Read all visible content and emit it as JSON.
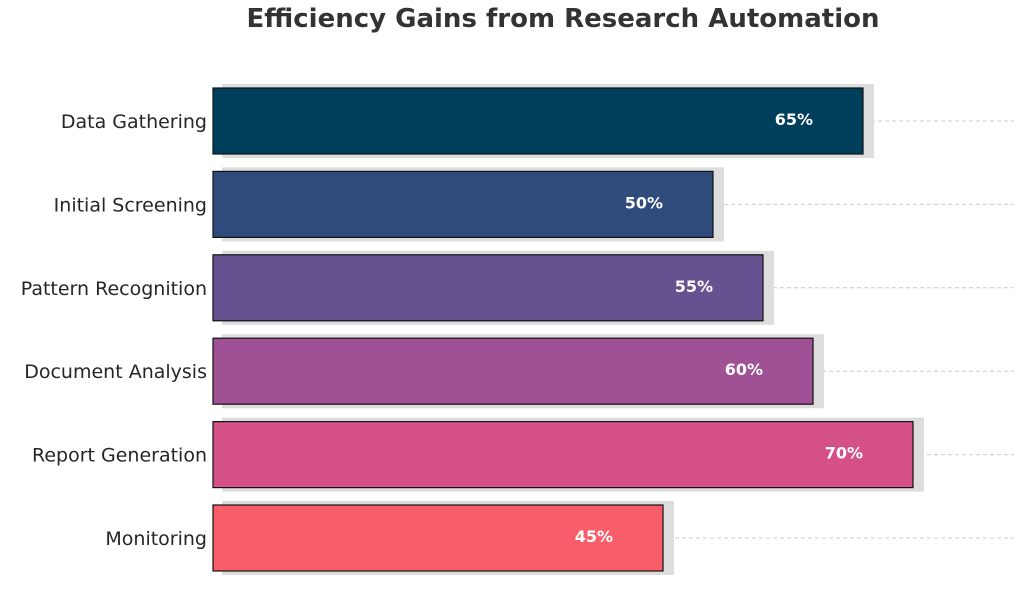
{
  "chart_data": {
    "type": "bar",
    "orientation": "horizontal",
    "title": "Efficiency Gains from Research Automation",
    "categories": [
      "Data Gathering",
      "Initial Screening",
      "Pattern Recognition",
      "Document Analysis",
      "Report Generation",
      "Monitoring"
    ],
    "values": [
      65,
      50,
      55,
      60,
      70,
      45
    ],
    "value_labels": [
      "65%",
      "50%",
      "55%",
      "60%",
      "70%",
      "45%"
    ],
    "colors": [
      "#003f5c",
      "#2f4b7c",
      "#665191",
      "#a05195",
      "#d45087",
      "#f95d6a"
    ],
    "shadow_color": "#dddddd",
    "grid_color": "#cccccc",
    "xlim": [
      0,
      70
    ],
    "grid": "horizontal dashed",
    "xlabel": "",
    "ylabel": ""
  }
}
